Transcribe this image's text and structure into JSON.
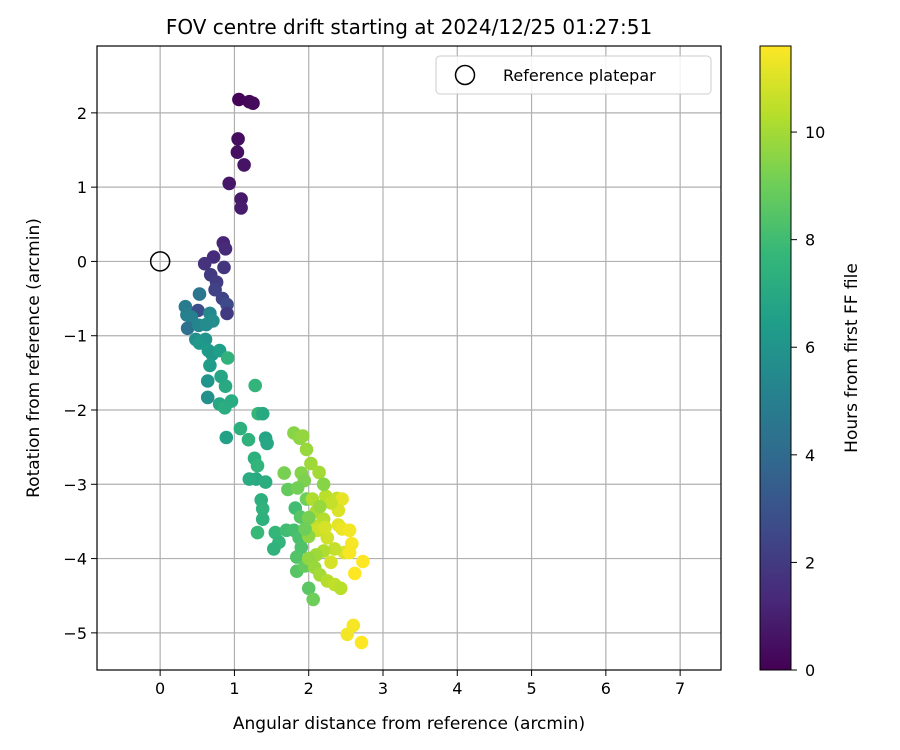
{
  "chart_data": {
    "type": "scatter",
    "title": "FOV centre drift starting at 2024/12/25 01:27:51",
    "xlabel": "Angular distance from reference (arcmin)",
    "ylabel": "Rotation from reference (arcmin)",
    "xlim": [
      -0.85,
      7.55
    ],
    "ylim": [
      -5.5,
      2.9
    ],
    "x_ticks": [
      "0",
      "1",
      "2",
      "3",
      "4",
      "5",
      "6",
      "7"
    ],
    "y_ticks": [
      "−5",
      "−4",
      "−3",
      "−2",
      "−1",
      "0",
      "1",
      "2"
    ],
    "grid": true,
    "legend_position": "top-right",
    "legend": [
      {
        "label": "Reference platepar",
        "marker": "open-circle"
      }
    ],
    "reference_point": {
      "x": 0,
      "y": 0
    },
    "colorbar": {
      "label": "Hours from first FF file",
      "range": [
        0,
        11.6
      ],
      "ticks": [
        "0",
        "2",
        "4",
        "6",
        "8",
        "10"
      ],
      "colormap": "viridis",
      "stops": [
        "#440154",
        "#482878",
        "#3e4989",
        "#31688e",
        "#26828e",
        "#1f9e89",
        "#35b779",
        "#6ece58",
        "#b5de2b",
        "#fde725"
      ]
    },
    "series": [
      {
        "points": [
          {
            "x": 1.06,
            "y": 2.18,
            "h": 0.1
          },
          {
            "x": 1.2,
            "y": 2.15,
            "h": 0.2
          },
          {
            "x": 1.25,
            "y": 2.13,
            "h": 0.3
          },
          {
            "x": 1.05,
            "y": 1.65,
            "h": 0.4
          },
          {
            "x": 1.04,
            "y": 1.47,
            "h": 0.5
          },
          {
            "x": 1.13,
            "y": 1.3,
            "h": 0.6
          },
          {
            "x": 0.93,
            "y": 1.05,
            "h": 0.7
          },
          {
            "x": 1.09,
            "y": 0.84,
            "h": 0.8
          },
          {
            "x": 1.09,
            "y": 0.72,
            "h": 0.9
          },
          {
            "x": 0.85,
            "y": 0.25,
            "h": 1.2
          },
          {
            "x": 0.88,
            "y": 0.17,
            "h": 1.4
          },
          {
            "x": 0.72,
            "y": 0.06,
            "h": 1.5
          },
          {
            "x": 0.6,
            "y": -0.03,
            "h": 1.7
          },
          {
            "x": 0.86,
            "y": -0.08,
            "h": 1.8
          },
          {
            "x": 0.68,
            "y": -0.18,
            "h": 2.0
          },
          {
            "x": 0.76,
            "y": -0.28,
            "h": 2.1
          },
          {
            "x": 0.74,
            "y": -0.38,
            "h": 2.3
          },
          {
            "x": 0.84,
            "y": -0.5,
            "h": 2.4
          },
          {
            "x": 0.9,
            "y": -0.58,
            "h": 2.6
          },
          {
            "x": 0.9,
            "y": -0.7,
            "h": 2.0
          },
          {
            "x": 0.51,
            "y": -0.66,
            "h": 2.8
          },
          {
            "x": 0.53,
            "y": -0.44,
            "h": 4.5
          },
          {
            "x": 0.34,
            "y": -0.61,
            "h": 4.8
          },
          {
            "x": 0.36,
            "y": -0.72,
            "h": 5.0
          },
          {
            "x": 0.42,
            "y": -0.75,
            "h": 5.1
          },
          {
            "x": 0.37,
            "y": -0.9,
            "h": 4.3
          },
          {
            "x": 0.52,
            "y": -0.86,
            "h": 5.3
          },
          {
            "x": 0.67,
            "y": -0.7,
            "h": 5.5
          },
          {
            "x": 0.71,
            "y": -0.8,
            "h": 5.7
          },
          {
            "x": 0.62,
            "y": -0.85,
            "h": 5.6
          },
          {
            "x": 0.48,
            "y": -1.05,
            "h": 5.8
          },
          {
            "x": 0.61,
            "y": -1.05,
            "h": 6.0
          },
          {
            "x": 0.53,
            "y": -1.1,
            "h": 6.2
          },
          {
            "x": 0.65,
            "y": -1.2,
            "h": 6.3
          },
          {
            "x": 0.7,
            "y": -1.25,
            "h": 6.1
          },
          {
            "x": 0.8,
            "y": -1.2,
            "h": 6.5
          },
          {
            "x": 0.67,
            "y": -1.4,
            "h": 6.4
          },
          {
            "x": 0.64,
            "y": -1.61,
            "h": 6.0
          },
          {
            "x": 0.82,
            "y": -1.55,
            "h": 6.8
          },
          {
            "x": 0.88,
            "y": -1.68,
            "h": 7.0
          },
          {
            "x": 0.64,
            "y": -1.83,
            "h": 5.8
          },
          {
            "x": 0.8,
            "y": -1.92,
            "h": 6.9
          },
          {
            "x": 0.87,
            "y": -1.97,
            "h": 7.2
          },
          {
            "x": 0.96,
            "y": -1.88,
            "h": 7.1
          },
          {
            "x": 0.89,
            "y": -2.37,
            "h": 6.6
          },
          {
            "x": 0.91,
            "y": -1.3,
            "h": 7.5
          },
          {
            "x": 1.08,
            "y": -2.25,
            "h": 7.3
          },
          {
            "x": 1.19,
            "y": -2.4,
            "h": 7.4
          },
          {
            "x": 1.28,
            "y": -1.67,
            "h": 7.6
          },
          {
            "x": 1.32,
            "y": -2.05,
            "h": 7.7
          },
          {
            "x": 1.38,
            "y": -2.05,
            "h": 7.0
          },
          {
            "x": 1.42,
            "y": -2.38,
            "h": 6.8
          },
          {
            "x": 1.44,
            "y": -2.45,
            "h": 6.9
          },
          {
            "x": 1.27,
            "y": -2.65,
            "h": 7.3
          },
          {
            "x": 1.31,
            "y": -2.75,
            "h": 7.6
          },
          {
            "x": 1.29,
            "y": -2.93,
            "h": 7.0
          },
          {
            "x": 1.2,
            "y": -2.93,
            "h": 7.1
          },
          {
            "x": 1.42,
            "y": -2.97,
            "h": 7.2
          },
          {
            "x": 1.36,
            "y": -3.21,
            "h": 7.3
          },
          {
            "x": 1.38,
            "y": -3.33,
            "h": 7.5
          },
          {
            "x": 1.38,
            "y": -3.47,
            "h": 7.4
          },
          {
            "x": 1.31,
            "y": -3.65,
            "h": 7.8
          },
          {
            "x": 1.55,
            "y": -3.65,
            "h": 7.7
          },
          {
            "x": 1.6,
            "y": -3.78,
            "h": 7.6
          },
          {
            "x": 1.53,
            "y": -3.87,
            "h": 7.5
          },
          {
            "x": 1.7,
            "y": -3.62,
            "h": 8.0
          },
          {
            "x": 1.8,
            "y": -3.62,
            "h": 8.1
          },
          {
            "x": 1.87,
            "y": -3.72,
            "h": 8.2
          },
          {
            "x": 1.9,
            "y": -3.85,
            "h": 8.3
          },
          {
            "x": 1.84,
            "y": -3.98,
            "h": 8.4
          },
          {
            "x": 1.84,
            "y": -4.17,
            "h": 8.5
          },
          {
            "x": 1.95,
            "y": -4.1,
            "h": 8.8
          },
          {
            "x": 2.0,
            "y": -4.4,
            "h": 8.6
          },
          {
            "x": 2.06,
            "y": -4.55,
            "h": 9.0
          },
          {
            "x": 1.82,
            "y": -3.32,
            "h": 8.0
          },
          {
            "x": 1.89,
            "y": -3.44,
            "h": 8.5
          },
          {
            "x": 1.97,
            "y": -3.2,
            "h": 9.0
          },
          {
            "x": 1.72,
            "y": -3.07,
            "h": 8.8
          },
          {
            "x": 1.67,
            "y": -2.85,
            "h": 9.2
          },
          {
            "x": 1.8,
            "y": -2.31,
            "h": 9.5
          },
          {
            "x": 1.88,
            "y": -2.38,
            "h": 9.6
          },
          {
            "x": 1.92,
            "y": -2.35,
            "h": 9.7
          },
          {
            "x": 1.97,
            "y": -2.53,
            "h": 9.8
          },
          {
            "x": 2.03,
            "y": -2.72,
            "h": 9.9
          },
          {
            "x": 2.14,
            "y": -2.84,
            "h": 10.0
          },
          {
            "x": 1.9,
            "y": -2.85,
            "h": 9.4
          },
          {
            "x": 1.94,
            "y": -2.95,
            "h": 9.3
          },
          {
            "x": 1.85,
            "y": -3.05,
            "h": 9.1
          },
          {
            "x": 2.05,
            "y": -3.2,
            "h": 10.2
          },
          {
            "x": 2.23,
            "y": -3.16,
            "h": 10.4
          },
          {
            "x": 2.38,
            "y": -3.19,
            "h": 10.6
          },
          {
            "x": 2.45,
            "y": -3.2,
            "h": 11.2
          },
          {
            "x": 2.4,
            "y": -3.35,
            "h": 11.0
          },
          {
            "x": 2.1,
            "y": -3.37,
            "h": 10.1
          },
          {
            "x": 2.2,
            "y": -3.47,
            "h": 10.3
          },
          {
            "x": 2.05,
            "y": -3.55,
            "h": 10.5
          },
          {
            "x": 2.12,
            "y": -3.62,
            "h": 10.7
          },
          {
            "x": 2.0,
            "y": -3.7,
            "h": 9.6
          },
          {
            "x": 2.25,
            "y": -3.72,
            "h": 10.8
          },
          {
            "x": 2.4,
            "y": -3.55,
            "h": 11.1
          },
          {
            "x": 2.45,
            "y": -3.6,
            "h": 11.3
          },
          {
            "x": 2.55,
            "y": -3.62,
            "h": 11.4
          },
          {
            "x": 2.58,
            "y": -3.8,
            "h": 11.5
          },
          {
            "x": 2.48,
            "y": -3.92,
            "h": 11.0
          },
          {
            "x": 2.35,
            "y": -3.87,
            "h": 10.6
          },
          {
            "x": 2.2,
            "y": -3.9,
            "h": 10.2
          },
          {
            "x": 2.1,
            "y": -3.95,
            "h": 9.9
          },
          {
            "x": 2.0,
            "y": -4.0,
            "h": 9.7
          },
          {
            "x": 2.08,
            "y": -4.12,
            "h": 9.8
          },
          {
            "x": 2.15,
            "y": -4.22,
            "h": 10.0
          },
          {
            "x": 2.25,
            "y": -4.3,
            "h": 10.3
          },
          {
            "x": 2.35,
            "y": -4.35,
            "h": 10.5
          },
          {
            "x": 2.43,
            "y": -4.4,
            "h": 10.4
          },
          {
            "x": 2.3,
            "y": -4.05,
            "h": 10.9
          },
          {
            "x": 2.55,
            "y": -3.92,
            "h": 11.5
          },
          {
            "x": 2.62,
            "y": -4.2,
            "h": 11.6
          },
          {
            "x": 2.73,
            "y": -4.04,
            "h": 11.6
          },
          {
            "x": 2.6,
            "y": -4.9,
            "h": 11.5
          },
          {
            "x": 2.52,
            "y": -5.02,
            "h": 11.4
          },
          {
            "x": 2.71,
            "y": -5.13,
            "h": 11.6
          },
          {
            "x": 2.2,
            "y": -3.0,
            "h": 9.5
          },
          {
            "x": 2.3,
            "y": -3.25,
            "h": 10.6
          },
          {
            "x": 2.0,
            "y": -3.45,
            "h": 9.2
          },
          {
            "x": 2.15,
            "y": -3.3,
            "h": 9.8
          },
          {
            "x": 1.95,
            "y": -3.6,
            "h": 9.0
          },
          {
            "x": 2.22,
            "y": -3.58,
            "h": 10.9
          }
        ]
      }
    ]
  }
}
